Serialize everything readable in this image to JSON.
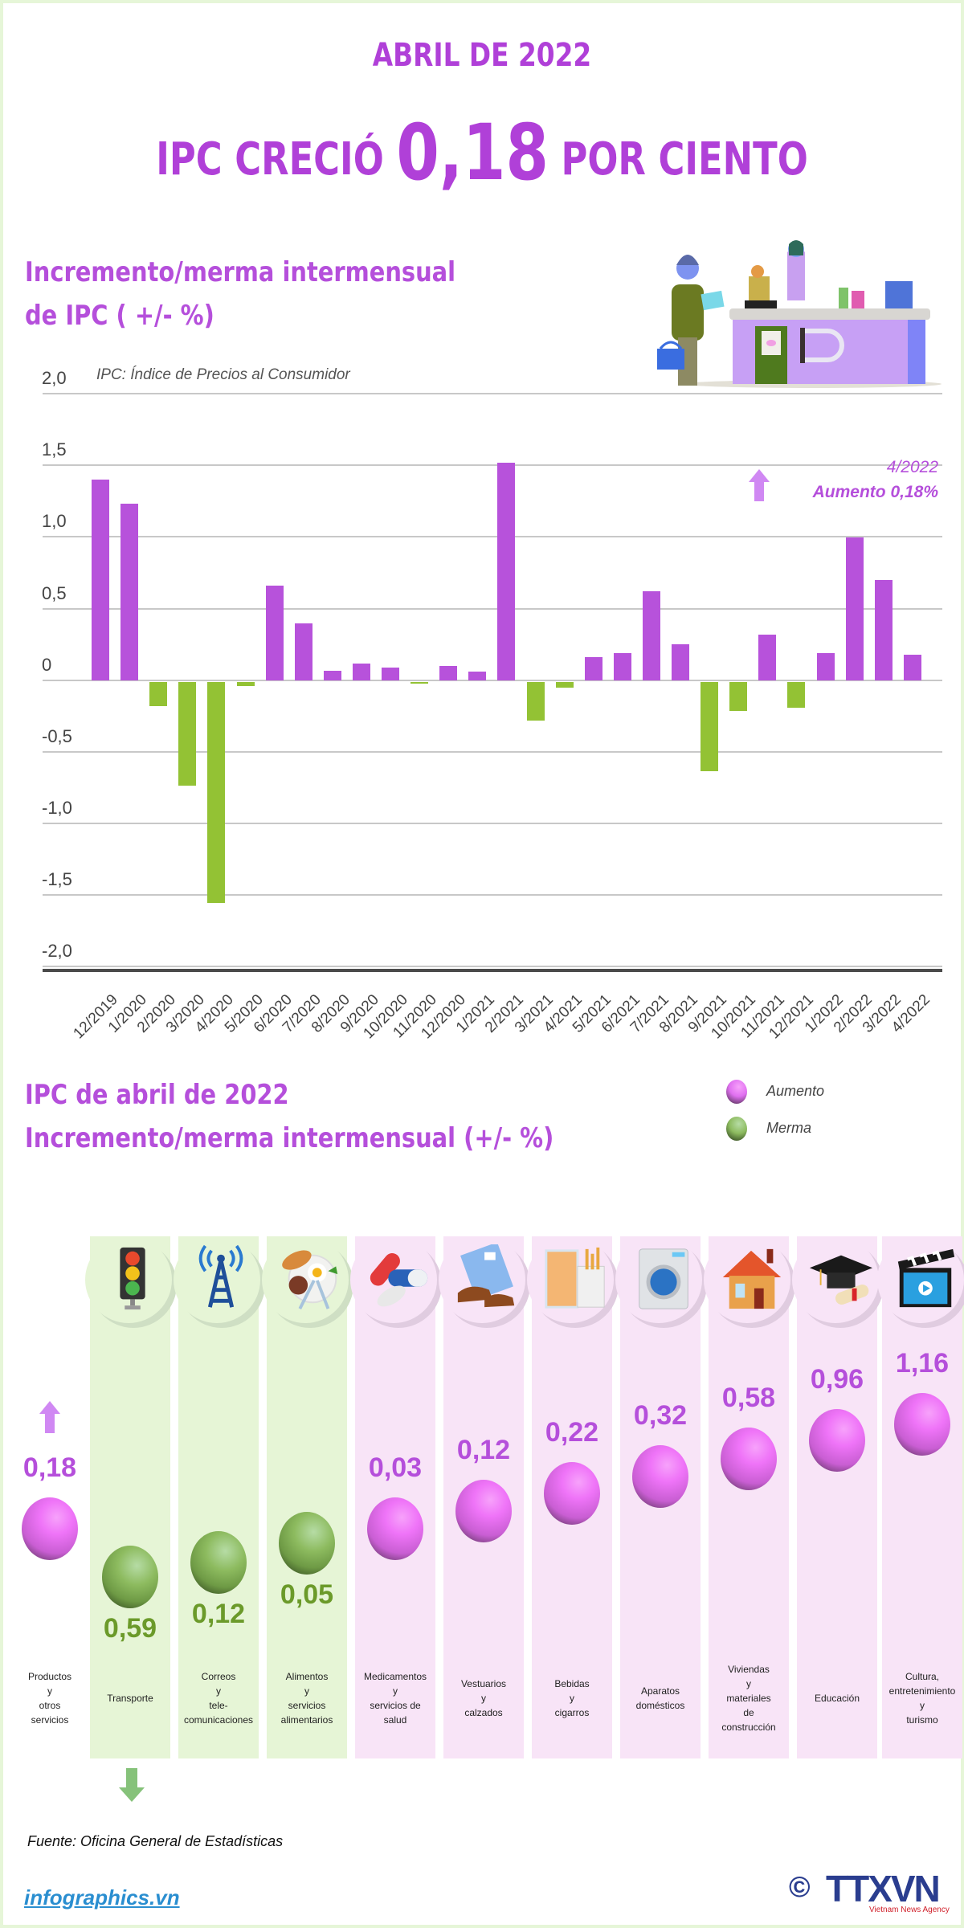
{
  "header": {
    "top_title": "ABRIL DE 2022",
    "main_prefix": "IPC CRECIÓ",
    "main_value": "0,18",
    "main_suffix": "POR CIENTO"
  },
  "section1": {
    "title_line1": "Incremento/merma intermensual",
    "title_line2": "de IPC ( +/- %)",
    "subnote": "IPC: Índice de Precios al Consumidor",
    "annotation_date": "4/2022",
    "annotation_text": "Aumento 0,18%"
  },
  "section2": {
    "title_line1": "IPC de abril de 2022",
    "title_line2": "Incremento/merma intermensual (+/- %)",
    "legend": [
      {
        "label": "Aumento",
        "color": "#e070f0"
      },
      {
        "label": "Merma",
        "color": "#8dbb5f"
      }
    ]
  },
  "colors": {
    "increase": "#b752db",
    "decrease": "#93c234",
    "title": "#b040d8"
  },
  "chart_data": [
    {
      "type": "bar",
      "title": "Incremento/merma intermensual de IPC ( +/- %)",
      "subtitle": "IPC: Índice de Precios al Consumidor",
      "xlabel": "",
      "ylabel": "",
      "ylim": [
        -2.0,
        2.0
      ],
      "yticks": [
        "2,0",
        "1,5",
        "1,0",
        "0,5",
        "0",
        "-0,5",
        "-1,0",
        "-1,5",
        "-2,0"
      ],
      "grid": true,
      "categories": [
        "12/2019",
        "1/2020",
        "2/2020",
        "3/2020",
        "4/2020",
        "5/2020",
        "6/2020",
        "7/2020",
        "8/2020",
        "9/2020",
        "10/2020",
        "11/2020",
        "12/2020",
        "1/2021",
        "2/2021",
        "3/2021",
        "4/2021",
        "5/2021",
        "6/2021",
        "7/2021",
        "8/2021",
        "9/2021",
        "10/2021",
        "11/2021",
        "12/2021",
        "1/2022",
        "2/2022",
        "3/2022",
        "4/2022"
      ],
      "values": [
        1.4,
        1.23,
        -0.17,
        -0.72,
        -1.54,
        -0.03,
        0.66,
        0.4,
        0.07,
        0.12,
        0.09,
        -0.01,
        0.1,
        0.06,
        1.52,
        -0.27,
        -0.04,
        0.16,
        0.19,
        0.62,
        0.25,
        -0.62,
        -0.2,
        0.32,
        -0.18,
        0.19,
        1.0,
        0.7,
        0.18
      ],
      "annotations": [
        "4/2022",
        "Aumento 0,18%"
      ]
    },
    {
      "type": "scatter",
      "title": "IPC de abril de 2022 Incremento/merma intermensual (+/- %)",
      "legend": [
        "Aumento",
        "Merma"
      ],
      "categories": [
        "Productos y otros servicios",
        "Transporte",
        "Correos y telecomunicaciones",
        "Alimentos y servicios alimentarios",
        "Medicamentos y servicios de salud",
        "Vestuarios y calzados",
        "Bebidas y cigarros",
        "Aparatos domésticos",
        "Viviendas y materiales de construcción",
        "Educación",
        "Cultura, entretenimiento y turismo"
      ],
      "values": [
        0.18,
        -0.59,
        -0.12,
        -0.05,
        0.03,
        0.12,
        0.22,
        0.32,
        0.58,
        0.96,
        1.16
      ]
    }
  ],
  "groups": [
    {
      "label_lines": [
        "Productos",
        "y",
        "otros",
        "servicios"
      ],
      "value": "0,18",
      "type": "p",
      "icon": "none"
    },
    {
      "label_lines": [
        "Transporte"
      ],
      "value": "0,59",
      "type": "g",
      "icon": "traffic-light-icon"
    },
    {
      "label_lines": [
        "Correos",
        "y",
        "tele-",
        "comunicaciones"
      ],
      "value": "0,12",
      "type": "g",
      "icon": "antenna-tower-icon"
    },
    {
      "label_lines": [
        "Alimentos",
        "y",
        "servicios",
        "alimentarios"
      ],
      "value": "0,05",
      "type": "g",
      "icon": "food-plate-icon"
    },
    {
      "label_lines": [
        "Medicamentos",
        "y",
        "servicios de",
        "salud"
      ],
      "value": "0,03",
      "type": "p",
      "icon": "pills-icon"
    },
    {
      "label_lines": [
        "Vestuarios",
        "y",
        "calzados"
      ],
      "value": "0,12",
      "type": "p",
      "icon": "clothes-shoes-icon"
    },
    {
      "label_lines": [
        "Bebidas",
        "y",
        "cigarros"
      ],
      "value": "0,22",
      "type": "p",
      "icon": "drink-cigarettes-icon"
    },
    {
      "label_lines": [
        "Aparatos",
        "domésticos"
      ],
      "value": "0,32",
      "type": "p",
      "icon": "washing-machine-icon"
    },
    {
      "label_lines": [
        "Viviendas",
        "y",
        "materiales",
        "de",
        "construcción"
      ],
      "value": "0,58",
      "type": "p",
      "icon": "house-icon"
    },
    {
      "label_lines": [
        "Educación"
      ],
      "value": "0,96",
      "type": "p",
      "icon": "graduation-cap-icon"
    },
    {
      "label_lines": [
        "Cultura,",
        "entretenimiento",
        "y",
        "turismo"
      ],
      "value": "1,16",
      "type": "p",
      "icon": "film-clapper-icon"
    }
  ],
  "footer": {
    "source": "Fuente: Oficina General de Estadísticas",
    "site": "infographics.vn",
    "logo_symbol": "©",
    "logo_text": "TTXVN",
    "logo_sub": "Vietnam News Agency"
  }
}
